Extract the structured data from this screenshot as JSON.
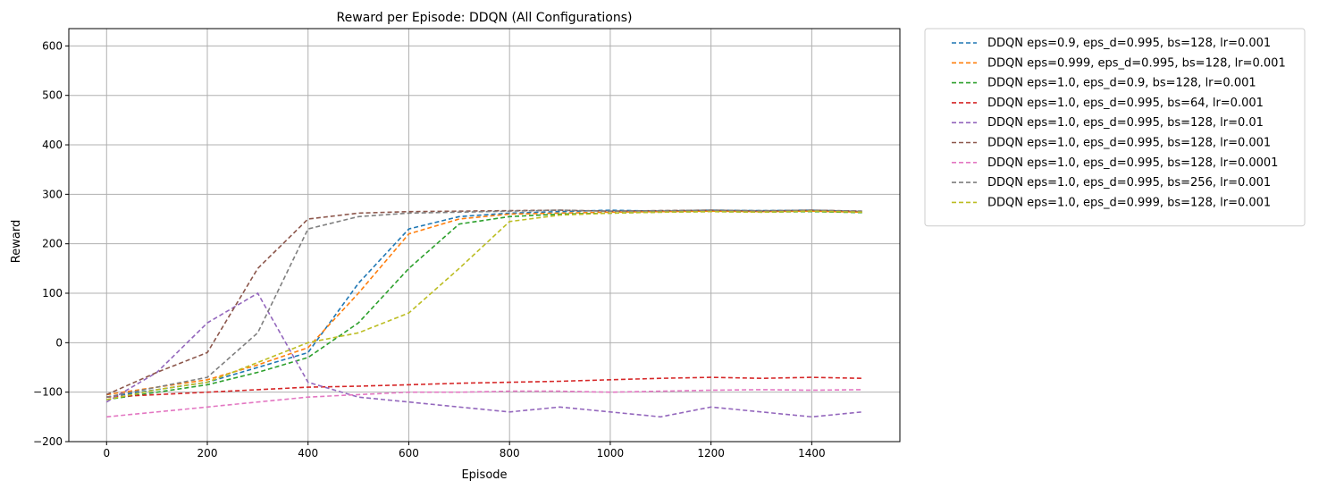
{
  "chart_data": {
    "type": "line",
    "title": "Reward per Episode: DDQN (All Configurations)",
    "xlabel": "Episode",
    "ylabel": "Reward",
    "xlim": [
      -75,
      1575
    ],
    "ylim": [
      -200,
      635
    ],
    "xticks": [
      0,
      200,
      400,
      600,
      800,
      1000,
      1200,
      1400
    ],
    "yticks": [
      -200,
      -100,
      0,
      100,
      200,
      300,
      400,
      500,
      600
    ],
    "grid": true,
    "line_style": "dashed",
    "legend_position": "outside-top-right",
    "series": [
      {
        "name": "DDQN eps=0.9, eps_d=0.995, bs=128, lr=0.001",
        "color": "#1f77b4",
        "x": [
          0,
          100,
          200,
          300,
          400,
          500,
          600,
          700,
          800,
          900,
          1000,
          1100,
          1200,
          1300,
          1400,
          1500
        ],
        "y": [
          -110,
          -95,
          -80,
          -50,
          -20,
          120,
          230,
          255,
          262,
          265,
          268,
          266,
          268,
          267,
          268,
          265
        ]
      },
      {
        "name": "DDQN eps=0.999, eps_d=0.995, bs=128, lr=0.001",
        "color": "#ff7f0e",
        "x": [
          0,
          100,
          200,
          300,
          400,
          500,
          600,
          700,
          800,
          900,
          1000,
          1100,
          1200,
          1300,
          1400,
          1500
        ],
        "y": [
          -105,
          -90,
          -75,
          -45,
          -10,
          100,
          220,
          250,
          260,
          262,
          264,
          265,
          266,
          265,
          266,
          264
        ]
      },
      {
        "name": "DDQN eps=1.0, eps_d=0.9, bs=128, lr=0.001",
        "color": "#2ca02c",
        "x": [
          0,
          100,
          200,
          300,
          400,
          500,
          600,
          700,
          800,
          900,
          1000,
          1100,
          1200,
          1300,
          1400,
          1500
        ],
        "y": [
          -115,
          -100,
          -85,
          -60,
          -30,
          40,
          150,
          240,
          255,
          260,
          262,
          264,
          265,
          264,
          265,
          263
        ]
      },
      {
        "name": "DDQN eps=1.0, eps_d=0.995, bs=64, lr=0.001",
        "color": "#d62728",
        "x": [
          0,
          100,
          200,
          300,
          400,
          500,
          600,
          700,
          800,
          900,
          1000,
          1100,
          1200,
          1300,
          1400,
          1500
        ],
        "y": [
          -110,
          -105,
          -100,
          -95,
          -90,
          -88,
          -85,
          -82,
          -80,
          -78,
          -75,
          -72,
          -70,
          -72,
          -70,
          -72
        ]
      },
      {
        "name": "DDQN eps=1.0, eps_d=0.995, bs=128, lr=0.01",
        "color": "#9467bd",
        "x": [
          0,
          100,
          200,
          300,
          400,
          500,
          600,
          700,
          800,
          900,
          1000,
          1100,
          1200,
          1300,
          1400,
          1500
        ],
        "y": [
          -120,
          -60,
          40,
          100,
          -80,
          -110,
          -120,
          -130,
          -140,
          -130,
          -140,
          -150,
          -130,
          -140,
          -150,
          -140
        ]
      },
      {
        "name": "DDQN eps=1.0, eps_d=0.995, bs=128, lr=0.001",
        "color": "#8c564b",
        "x": [
          0,
          100,
          200,
          300,
          400,
          500,
          600,
          700,
          800,
          900,
          1000,
          1100,
          1200,
          1300,
          1400,
          1500
        ],
        "y": [
          -105,
          -60,
          -20,
          150,
          250,
          262,
          265,
          266,
          267,
          268,
          266,
          267,
          268,
          266,
          268,
          266
        ]
      },
      {
        "name": "DDQN eps=1.0, eps_d=0.995, bs=128, lr=0.0001",
        "color": "#e377c2",
        "x": [
          0,
          100,
          200,
          300,
          400,
          500,
          600,
          700,
          800,
          900,
          1000,
          1100,
          1200,
          1300,
          1400,
          1500
        ],
        "y": [
          -150,
          -140,
          -130,
          -120,
          -110,
          -105,
          -100,
          -100,
          -98,
          -98,
          -100,
          -98,
          -96,
          -95,
          -96,
          -95
        ]
      },
      {
        "name": "DDQN eps=1.0, eps_d=0.995, bs=256, lr=0.001",
        "color": "#7f7f7f",
        "x": [
          0,
          100,
          200,
          300,
          400,
          500,
          600,
          700,
          800,
          900,
          1000,
          1100,
          1200,
          1300,
          1400,
          1500
        ],
        "y": [
          -110,
          -90,
          -70,
          20,
          230,
          255,
          262,
          264,
          266,
          268,
          266,
          267,
          268,
          267,
          268,
          266
        ]
      },
      {
        "name": "DDQN eps=1.0, eps_d=0.999, bs=128, lr=0.001",
        "color": "#bcbd22",
        "x": [
          0,
          100,
          200,
          300,
          400,
          500,
          600,
          700,
          800,
          900,
          1000,
          1100,
          1200,
          1300,
          1400,
          1500
        ],
        "y": [
          -115,
          -95,
          -80,
          -40,
          0,
          20,
          60,
          150,
          245,
          258,
          262,
          264,
          265,
          264,
          266,
          264
        ]
      }
    ]
  }
}
